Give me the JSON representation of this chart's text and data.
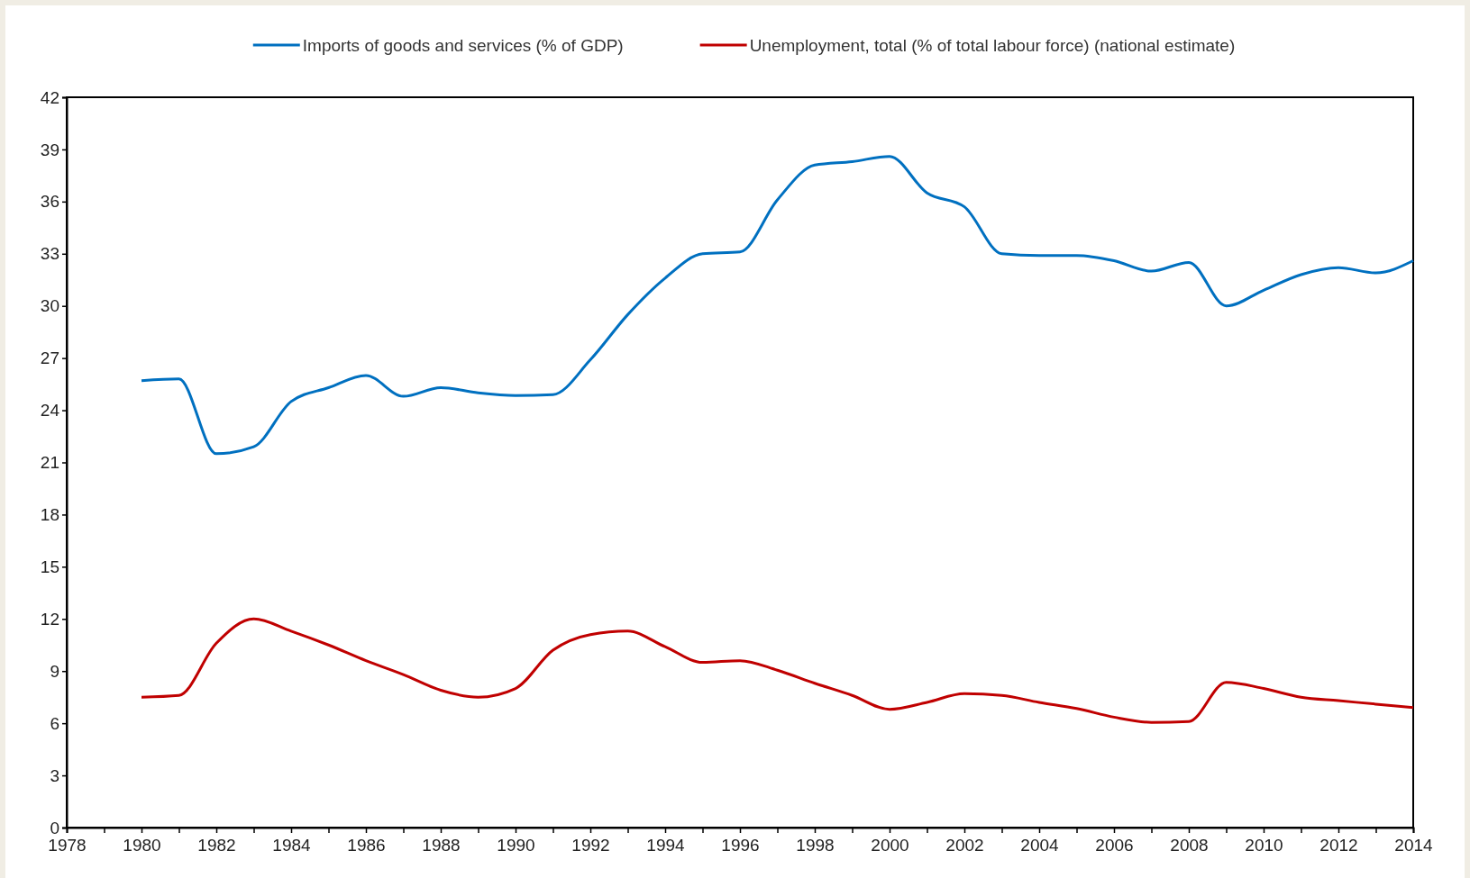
{
  "chart_data": {
    "type": "line",
    "x": [
      1980,
      1981,
      1982,
      1983,
      1984,
      1985,
      1986,
      1987,
      1988,
      1989,
      1990,
      1991,
      1992,
      1993,
      1994,
      1995,
      1996,
      1997,
      1998,
      1999,
      2000,
      2001,
      2002,
      2003,
      2004,
      2005,
      2006,
      2007,
      2008,
      2009,
      2010,
      2011,
      2012,
      2013,
      2014
    ],
    "series": [
      {
        "name": "Imports of goods and services (% of GDP)",
        "color": "#0070c0",
        "values": [
          25.7,
          25.8,
          21.5,
          21.9,
          24.5,
          25.3,
          26.0,
          24.8,
          25.3,
          25.0,
          24.85,
          24.9,
          26.9,
          29.5,
          31.6,
          33.0,
          33.1,
          36.1,
          38.1,
          38.3,
          38.6,
          36.5,
          35.7,
          33.0,
          32.9,
          32.9,
          32.6,
          32.0,
          32.5,
          30.0,
          30.9,
          31.8,
          32.2,
          31.9,
          32.6
        ]
      },
      {
        "name": "Unemployment, total (% of total labour force) (national estimate)",
        "color": "#c00000",
        "values": [
          7.5,
          7.6,
          10.6,
          12.0,
          11.3,
          10.5,
          9.6,
          8.8,
          7.9,
          7.5,
          8.0,
          10.2,
          11.1,
          11.3,
          10.4,
          9.5,
          9.6,
          9.05,
          8.3,
          7.6,
          6.8,
          7.2,
          7.7,
          7.6,
          7.2,
          6.85,
          6.35,
          6.05,
          6.1,
          8.35,
          8.0,
          7.5,
          7.3,
          7.1,
          6.9
        ]
      }
    ],
    "xlim": [
      1978,
      2014
    ],
    "xticks": [
      1978,
      {
        "value": 1979,
        "label": null
      },
      1980,
      {
        "value": 1981,
        "label": null
      },
      1982,
      {
        "value": 1983,
        "label": null
      },
      1984,
      {
        "value": 1985,
        "label": null
      },
      1986,
      {
        "value": 1987,
        "label": null
      },
      1988,
      {
        "value": 1989,
        "label": null
      },
      1990,
      {
        "value": 1991,
        "label": null
      },
      1992,
      {
        "value": 1993,
        "label": null
      },
      1994,
      {
        "value": 1995,
        "label": null
      },
      1996,
      {
        "value": 1997,
        "label": null
      },
      1998,
      {
        "value": 1999,
        "label": null
      },
      2000,
      {
        "value": 2001,
        "label": null
      },
      2002,
      {
        "value": 2003,
        "label": null
      },
      2004,
      {
        "value": 2005,
        "label": null
      },
      2006,
      {
        "value": 2007,
        "label": null
      },
      2008,
      {
        "value": 2009,
        "label": null
      },
      2010,
      {
        "value": 2011,
        "label": null
      },
      2012,
      {
        "value": 2013,
        "label": null
      },
      2014
    ],
    "ylim": [
      0,
      42
    ],
    "yticks": [
      0,
      3,
      6,
      9,
      12,
      15,
      18,
      21,
      24,
      27,
      30,
      33,
      36,
      39,
      42
    ],
    "legend": "top",
    "grid": false,
    "line_style": "solid",
    "marker": "none"
  }
}
